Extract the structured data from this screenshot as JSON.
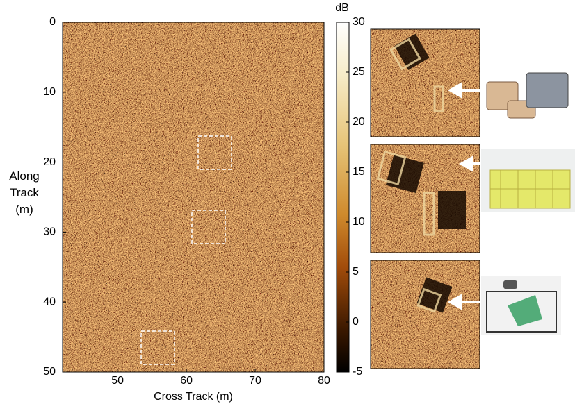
{
  "chart_data": {
    "type": "heatmap",
    "xlabel": "Cross Track (m)",
    "ylabel": "Along Track (m)",
    "colorbar_label": "dB",
    "xlim": [
      42,
      80
    ],
    "xticks": [
      50,
      60,
      70,
      80
    ],
    "ylim": [
      0,
      50
    ],
    "yticks": [
      0,
      10,
      20,
      30,
      40,
      50
    ],
    "clim": [
      -5,
      30
    ],
    "cticks": [
      -5,
      0,
      5,
      10,
      15,
      20,
      25,
      30
    ]
  }
}
